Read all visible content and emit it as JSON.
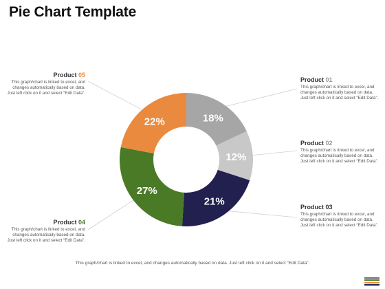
{
  "page": {
    "title": "Pie Chart Template",
    "footer": "This graph/chart is linked to excel, and changes automatically based on data. Just left click on it and select “Edit Data”."
  },
  "products": [
    {
      "label": "Product",
      "num": "01",
      "num_color": "#999999",
      "desc": "This graph/chart is linked to excel, and changes automatically based on data. Just left click on it and select “Edit Data”."
    },
    {
      "label": "Product",
      "num": "02",
      "num_color": "#999999",
      "desc": "This graph/chart is linked to excel, and changes automatically based on data. Just left click on it and select “Edit Data”."
    },
    {
      "label": "Product",
      "num": "03",
      "num_color": "#333333",
      "desc": "This graph/chart is linked to excel, and changes automatically based on data. Just left click on it and select “Edit Data”."
    },
    {
      "label": "Product",
      "num": "04",
      "num_color": "#4a7a26",
      "desc": "This graph/chart is linked to excel, and changes automatically based on data. Just left click on it and select “Edit Data”."
    },
    {
      "label": "Product",
      "num": "05",
      "num_color": "#ea8a3f",
      "desc": "This graph/chart is linked to excel, and changes automatically based on data. Just left click on it and select “Edit Data”."
    }
  ],
  "chart_data": {
    "type": "pie",
    "donut": true,
    "categories": [
      "Product 01",
      "Product 02",
      "Product 03",
      "Product 04",
      "Product 05"
    ],
    "values": [
      18,
      12,
      21,
      27,
      22
    ],
    "labels": [
      "18%",
      "12%",
      "21%",
      "27%",
      "22%"
    ],
    "colors": [
      "#a6a6a6",
      "#c8c8c8",
      "#22204f",
      "#4a7a26",
      "#ea8a3f"
    ],
    "label_colors": [
      "#ffffff",
      "#ffffff",
      "#ffffff",
      "#ffffff",
      "#ffffff"
    ]
  },
  "colors": {
    "connector": "#cfcfcf",
    "deco": [
      "#6c6c6c",
      "#4a7a26",
      "#ea8a3f",
      "#22204f"
    ]
  }
}
